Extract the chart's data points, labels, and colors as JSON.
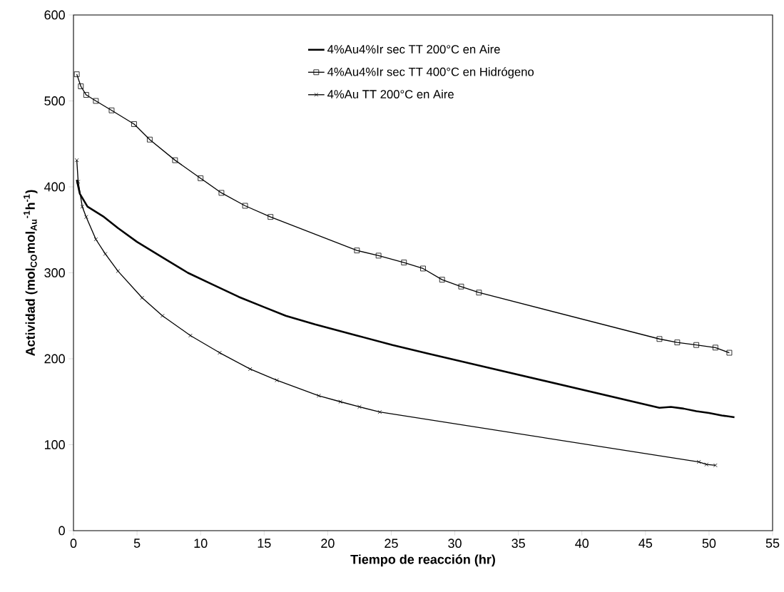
{
  "chart_data": {
    "type": "line",
    "xlabel": "Tiempo de reacción (hr)",
    "ylabel": "Actividad (mol$_{CO}$mol$_{Au}$$^{-1}$h$^{-1}$)",
    "xlim": [
      0,
      55
    ],
    "ylim": [
      0,
      600
    ],
    "xticks": [
      0,
      5,
      10,
      15,
      20,
      25,
      30,
      35,
      40,
      45,
      50,
      55
    ],
    "yticks": [
      0,
      100,
      200,
      300,
      400,
      500,
      600
    ],
    "legend": "top",
    "line_style": "solid",
    "series": [
      {
        "name": "4%Au4%Ir sec TT 200°C en Aire",
        "color": "#000000",
        "marker": "none",
        "x": [
          0.26,
          0.5,
          1.1,
          2.4,
          3.5,
          5,
          7,
          9,
          11,
          13,
          15,
          16.7,
          19,
          22.3,
          25.1,
          27.9,
          46.1,
          47,
          48,
          49,
          50,
          51,
          52
        ],
        "values": [
          408,
          392,
          377,
          365,
          352,
          336,
          318,
          300,
          286,
          272,
          260,
          250,
          240,
          227,
          216,
          206,
          143,
          144,
          142,
          139,
          137,
          134,
          132
        ]
      },
      {
        "name": "4%Au4%Ir sec TT 400°C en Hidrógeno",
        "color": "#000000",
        "marker": "square",
        "x": [
          0.26,
          0.58,
          1,
          1.76,
          3,
          4.77,
          6,
          7.99,
          10,
          11.64,
          13.5,
          15.5,
          22.3,
          24,
          26,
          27.5,
          29,
          30.5,
          31.9,
          46.1,
          47.5,
          49,
          50.5,
          51.6
        ],
        "values": [
          531,
          517,
          507,
          500,
          489,
          473,
          455,
          431,
          410,
          393,
          378,
          365,
          326,
          320,
          312,
          305,
          292,
          284,
          277,
          223,
          219,
          216,
          213,
          207
        ]
      },
      {
        "name": "4%Au TT 200°C en Aire",
        "color": "#000000",
        "marker": "cross",
        "x": [
          0.26,
          0.37,
          0.69,
          1,
          1.76,
          2.5,
          3.5,
          5.4,
          7,
          9.2,
          11.5,
          13.9,
          16,
          19.3,
          21,
          22.5,
          24.1,
          49.2,
          49.8,
          50.5
        ],
        "values": [
          431,
          406,
          377,
          365,
          339,
          322,
          302,
          271,
          250,
          227,
          207,
          188,
          175,
          157,
          150,
          144,
          138,
          80,
          77,
          76
        ]
      }
    ]
  }
}
